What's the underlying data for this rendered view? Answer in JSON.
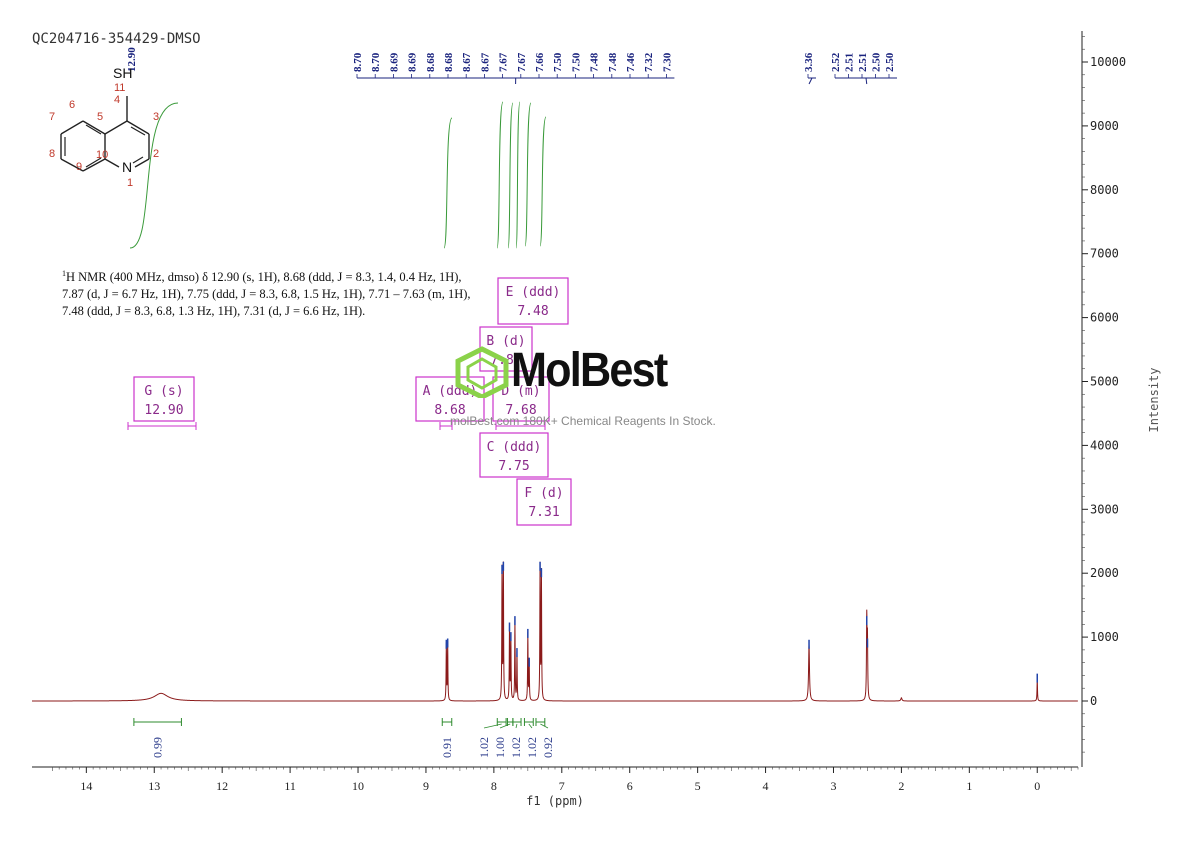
{
  "sample_id": "QC204716-354429-DMSO",
  "nmr_description": {
    "nucleus_sup": "1",
    "text": "H NMR (400 MHz, dmso) δ 12.90 (s, 1H), 8.68 (ddd, J = 8.3, 1.4, 0.4 Hz, 1H), 7.87 (d, J = 6.7 Hz, 1H), 7.75 (ddd, J = 8.3, 6.8, 1.5 Hz, 1H), 7.71 – 7.63 (m, 1H), 7.48 (ddd, J = 8.3, 6.8, 1.3 Hz, 1H), 7.31 (d, J = 6.6 Hz, 1H)."
  },
  "watermark": {
    "name": "MolBest",
    "tagline": "molBest.com 180K+ Chemical Reagents In Stock."
  },
  "structure": {
    "substituent": "SH",
    "heteroatom": "N",
    "atom_numbers": [
      "1",
      "2",
      "3",
      "4",
      "5",
      "6",
      "7",
      "8",
      "9",
      "10",
      "11"
    ]
  },
  "chart_data": {
    "type": "line",
    "xlabel": "f1 (ppm)",
    "ylabel": "Intensity",
    "xlim": [
      14.8,
      -0.6
    ],
    "ylim": [
      -1000,
      10500
    ],
    "x_reversed": true,
    "x_ticks": [
      14,
      13,
      12,
      11,
      10,
      9,
      8,
      7,
      6,
      5,
      4,
      3,
      2,
      1,
      0
    ],
    "y_ticks": [
      0,
      1000,
      2000,
      3000,
      4000,
      5000,
      6000,
      7000,
      8000,
      9000,
      10000
    ],
    "peaks": [
      {
        "ppm": 12.9,
        "intensity": 120,
        "width": 0.12
      },
      {
        "ppm": 8.7,
        "intensity": 880,
        "width": 0.004
      },
      {
        "ppm": 8.68,
        "intensity": 900,
        "width": 0.004
      },
      {
        "ppm": 7.88,
        "intensity": 2050,
        "width": 0.004
      },
      {
        "ppm": 7.86,
        "intensity": 2100,
        "width": 0.004
      },
      {
        "ppm": 7.77,
        "intensity": 1150,
        "width": 0.004
      },
      {
        "ppm": 7.75,
        "intensity": 1000,
        "width": 0.004
      },
      {
        "ppm": 7.69,
        "intensity": 1250,
        "width": 0.004
      },
      {
        "ppm": 7.66,
        "intensity": 750,
        "width": 0.004
      },
      {
        "ppm": 7.5,
        "intensity": 1050,
        "width": 0.004
      },
      {
        "ppm": 7.48,
        "intensity": 600,
        "width": 0.004
      },
      {
        "ppm": 7.32,
        "intensity": 2100,
        "width": 0.004
      },
      {
        "ppm": 7.3,
        "intensity": 2000,
        "width": 0.004
      },
      {
        "ppm": 3.36,
        "intensity": 880,
        "width": 0.008
      },
      {
        "ppm": 2.51,
        "intensity": 1250,
        "width": 0.005
      },
      {
        "ppm": 2.5,
        "intensity": 900,
        "width": 0.005
      },
      {
        "ppm": 2.0,
        "intensity": 50,
        "width": 0.01
      },
      {
        "ppm": 0.0,
        "intensity": 350,
        "width": 0.004
      }
    ],
    "peak_label_group1": [
      "8.70",
      "8.70",
      "8.69",
      "8.69",
      "8.68",
      "8.68",
      "8.67",
      "8.67",
      "7.67",
      "7.67",
      "7.66",
      "7.50",
      "7.50",
      "7.48",
      "7.48",
      "7.46",
      "7.32",
      "7.30"
    ],
    "peak_label_group2": [
      "3.36"
    ],
    "peak_label_group3": [
      "2.52",
      "2.51",
      "2.51",
      "2.50",
      "2.50"
    ],
    "peak_label_single": "12.90",
    "multiplets": [
      {
        "label": "G (s)",
        "shift": "12.90"
      },
      {
        "label": "A (ddd)",
        "shift": "8.68"
      },
      {
        "label": "B (d)",
        "shift": "7.87"
      },
      {
        "label": "D (m)",
        "shift": "7.68"
      },
      {
        "label": "C (ddd)",
        "shift": "7.75"
      },
      {
        "label": "E (ddd)",
        "shift": "7.48"
      },
      {
        "label": "F (d)",
        "shift": "7.31"
      }
    ],
    "integrals": [
      {
        "from": 13.3,
        "to": 12.6,
        "value": "0.99"
      },
      {
        "from": 8.76,
        "to": 8.62,
        "value": "0.91"
      },
      {
        "from": 7.95,
        "to": 7.82,
        "value": "1.02"
      },
      {
        "from": 7.8,
        "to": 7.72,
        "value": "1.00"
      },
      {
        "from": 7.72,
        "to": 7.6,
        "value": "1.02"
      },
      {
        "from": 7.55,
        "to": 7.42,
        "value": "1.02"
      },
      {
        "from": 7.38,
        "to": 7.25,
        "value": "0.92"
      }
    ]
  }
}
